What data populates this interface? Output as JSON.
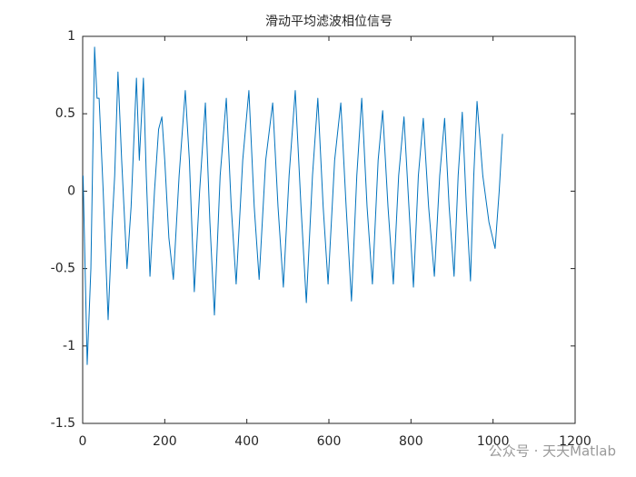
{
  "chart_data": {
    "type": "line",
    "title": "滑动平均滤波相位信号",
    "x": [
      1,
      11,
      20,
      29,
      35,
      40,
      50,
      62,
      72,
      78,
      86,
      95,
      108,
      118,
      131,
      138,
      148,
      155,
      164,
      175,
      185,
      193,
      200,
      210,
      221,
      235,
      250,
      260,
      272,
      285,
      299,
      310,
      321,
      335,
      350,
      362,
      374,
      390,
      405,
      418,
      430,
      446,
      463,
      476,
      489,
      503,
      518,
      532,
      545,
      560,
      573,
      586,
      598,
      614,
      629,
      642,
      655,
      668,
      680,
      693,
      706,
      720,
      731,
      744,
      757,
      770,
      783,
      795,
      806,
      818,
      830,
      843,
      857,
      870,
      882,
      893,
      905,
      915,
      925,
      935,
      945,
      953,
      961,
      975,
      990,
      1005,
      1015,
      1023
    ],
    "series": [
      {
        "color": "#0072bd",
        "values": [
          0.1,
          -1.12,
          -0.5,
          0.93,
          0.6,
          0.6,
          0,
          -0.83,
          -0.2,
          0.1,
          0.77,
          0.2,
          -0.5,
          -0.1,
          0.73,
          0.2,
          0.73,
          0.1,
          -0.55,
          0,
          0.4,
          0.48,
          0.2,
          -0.3,
          -0.57,
          0.1,
          0.65,
          0.2,
          -0.65,
          0,
          0.57,
          -0.2,
          -0.8,
          0.1,
          0.6,
          -0.1,
          -0.6,
          0.2,
          0.65,
          -0.1,
          -0.57,
          0.2,
          0.57,
          -0.1,
          -0.62,
          0.1,
          0.65,
          -0.1,
          -0.72,
          0.1,
          0.6,
          -0.1,
          -0.6,
          0.2,
          0.57,
          -0.1,
          -0.71,
          0.1,
          0.6,
          -0.1,
          -0.6,
          0.2,
          0.52,
          -0.1,
          -0.6,
          0.1,
          0.48,
          -0.1,
          -0.62,
          0.1,
          0.47,
          -0.1,
          -0.55,
          0.1,
          0.47,
          -0.1,
          -0.55,
          0.1,
          0.51,
          -0.1,
          -0.58,
          0.1,
          0.58,
          0.1,
          -0.2,
          -0.37,
          0,
          0.37
        ]
      }
    ],
    "xlim": [
      0,
      1200
    ],
    "xticks": [
      0,
      200,
      400,
      600,
      800,
      1000,
      1200
    ],
    "ylim": [
      -1.5,
      1
    ],
    "yticks": [
      -1.5,
      -1,
      -0.5,
      0,
      0.5,
      1
    ],
    "watermark": "公众号 · 天天Matlab"
  }
}
